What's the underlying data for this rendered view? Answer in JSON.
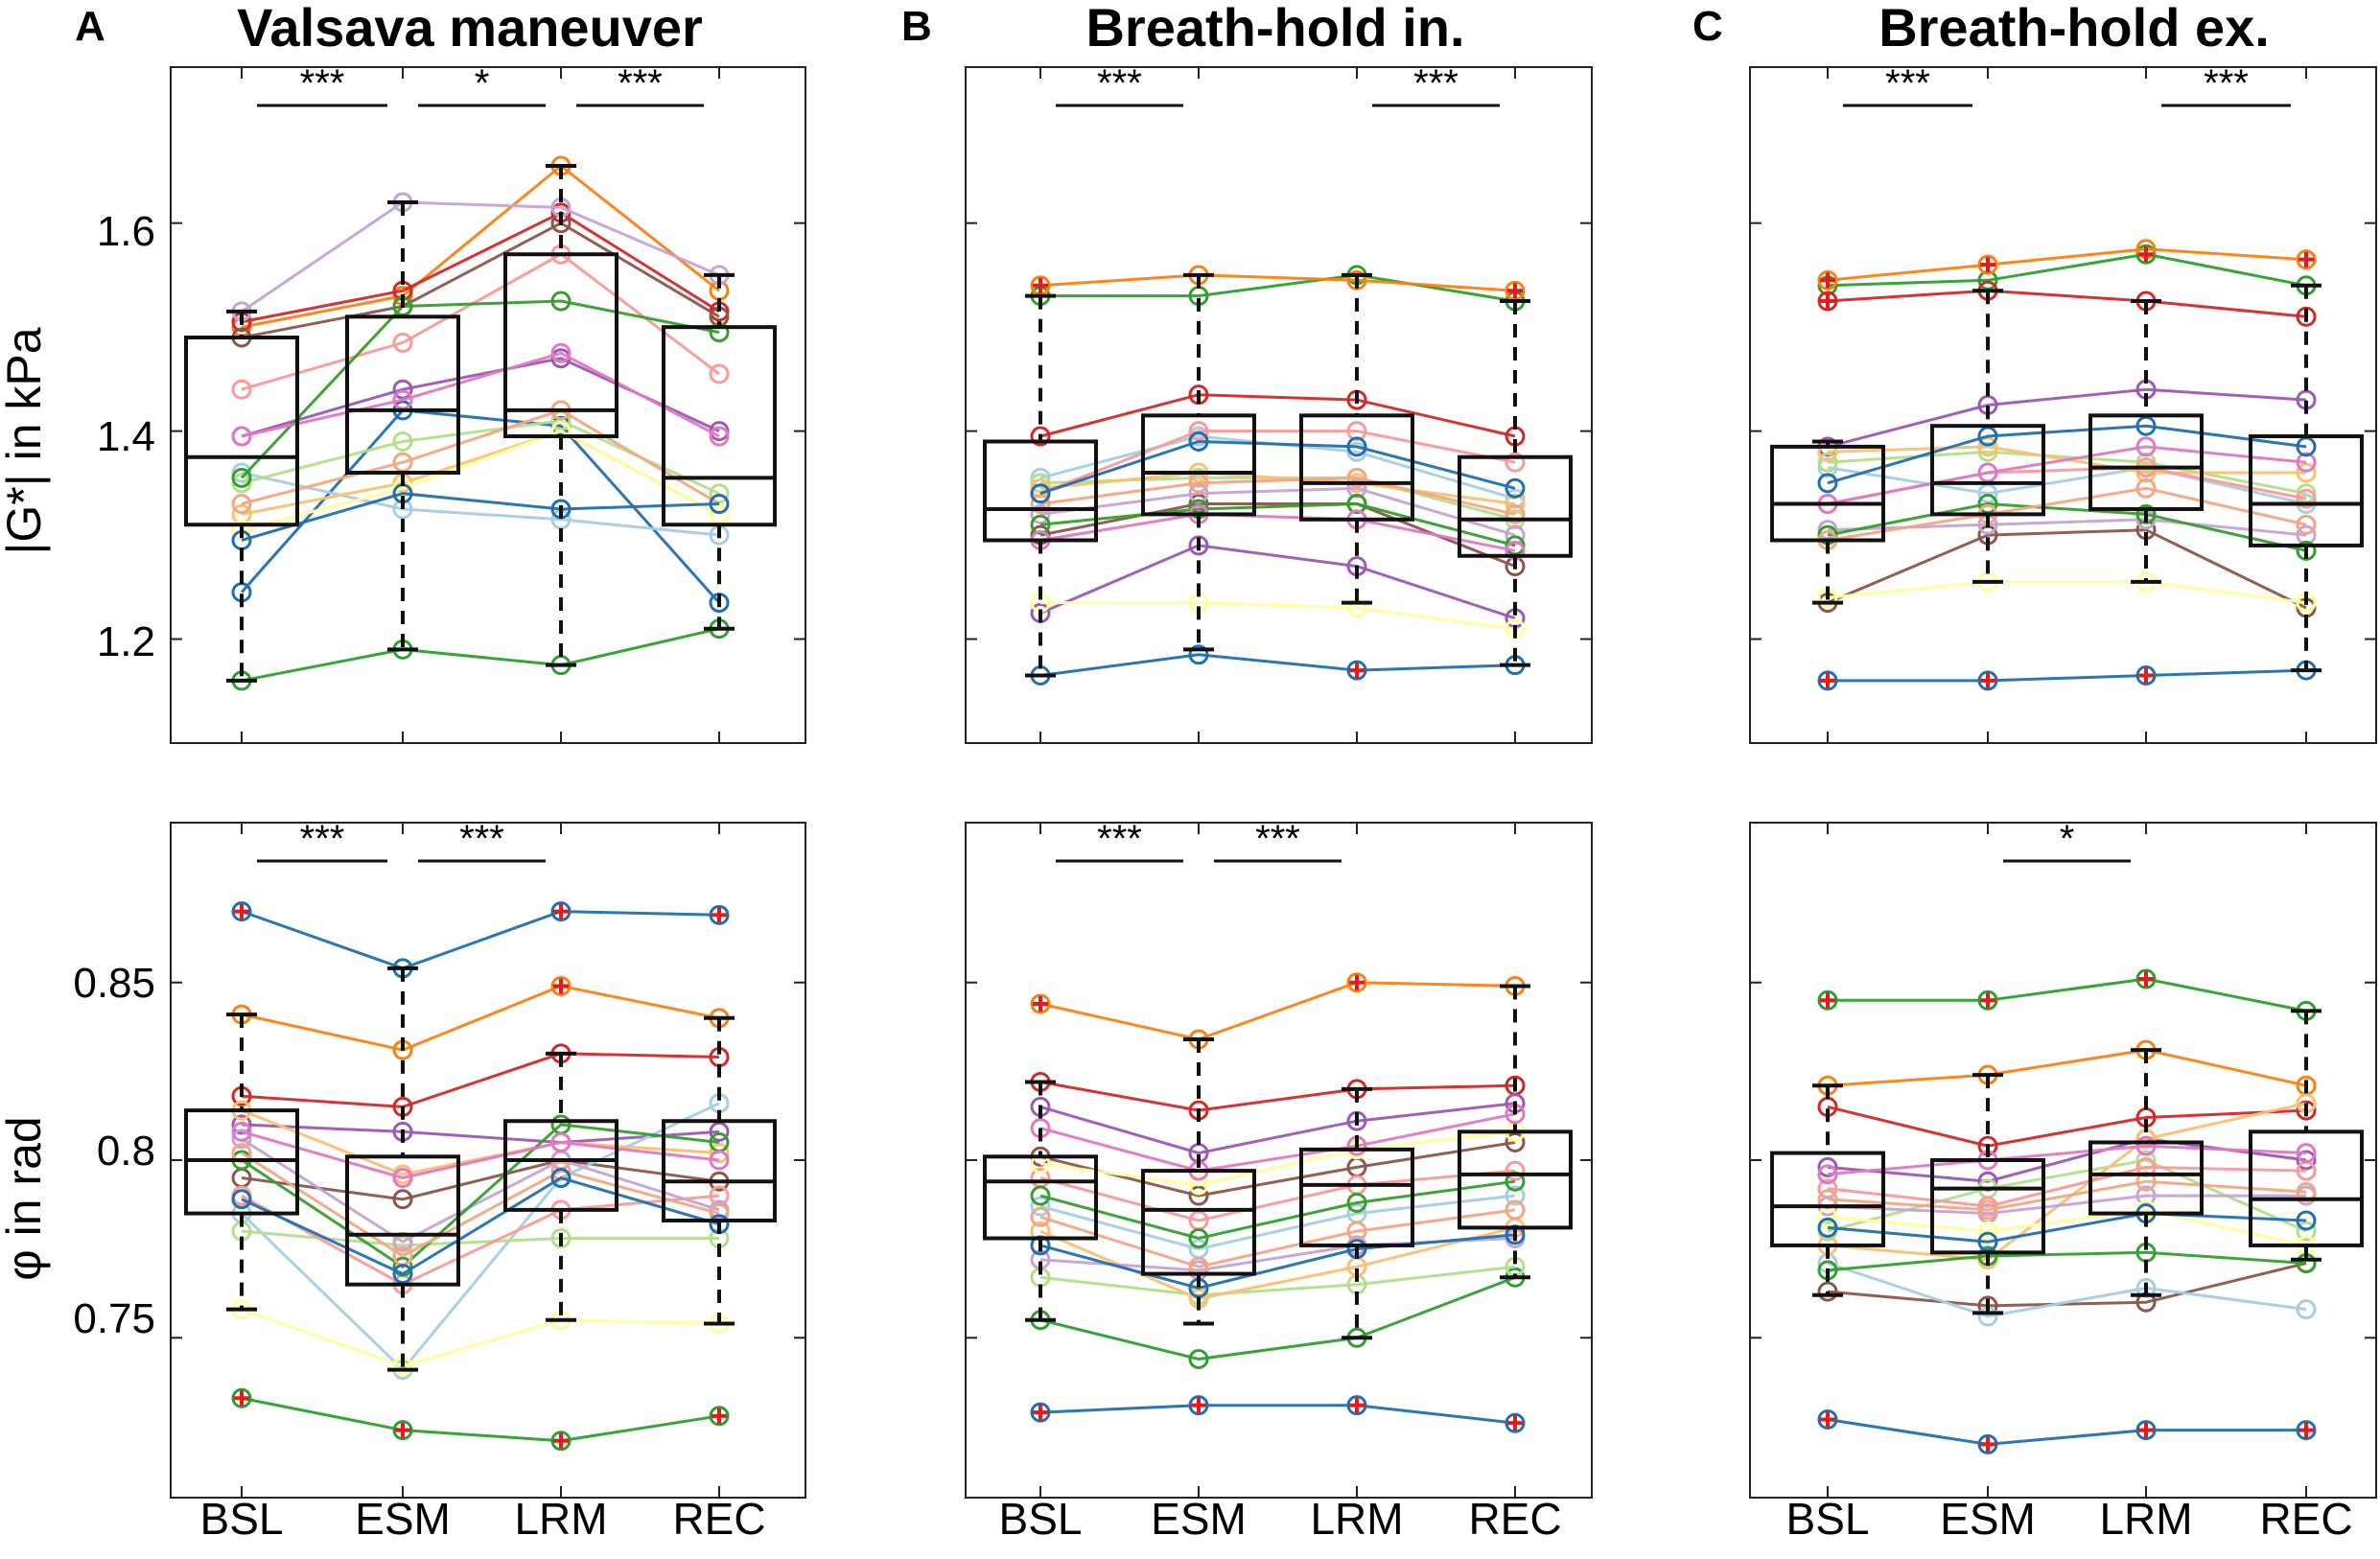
{
  "chart_data": {
    "type": "boxplot-with-paired-lines",
    "categories": [
      "BSL",
      "ESM",
      "LRM",
      "REC"
    ],
    "panels": [
      {
        "letter": "A",
        "title": "Valsava maneuver"
      },
      {
        "letter": "B",
        "title": "Breath-hold in."
      },
      {
        "letter": "C",
        "title": "Breath-hold ex."
      }
    ],
    "rows": [
      {
        "ylabel": "|G*| in kPa",
        "ylim": [
          1.1,
          1.75
        ],
        "yticks": [
          1.2,
          1.4,
          1.6
        ],
        "ytick_labels": [
          "1.2",
          "1.4",
          "1.6"
        ]
      },
      {
        "ylabel": "φ in rad",
        "ylim": [
          0.705,
          0.895
        ],
        "yticks": [
          0.75,
          0.8,
          0.85
        ],
        "ytick_labels": [
          "0.75",
          "0.8",
          "0.85"
        ]
      }
    ],
    "subject_colors": [
      "#1f6fb2",
      "#2ca02c",
      "#ff7f0e",
      "#d62728",
      "#9b59b6",
      "#8c564b",
      "#a6cee3",
      "#b2df8a",
      "#fdbf6f",
      "#fb9a99",
      "#c5a3d6",
      "#ffff99",
      "#33a02c",
      "#e377c2",
      "#f4a582"
    ],
    "plots": [
      {
        "id": "A-G",
        "significance": [
          {
            "from": 0,
            "to": 1,
            "label": "***"
          },
          {
            "from": 1,
            "to": 2,
            "label": "*"
          },
          {
            "from": 2,
            "to": 3,
            "label": "***"
          }
        ],
        "boxes": [
          {
            "whislo": 1.16,
            "q1": 1.31,
            "med": 1.375,
            "q3": 1.49,
            "whishi": 1.515
          },
          {
            "whislo": 1.19,
            "q1": 1.36,
            "med": 1.42,
            "q3": 1.51,
            "whishi": 1.62
          },
          {
            "whislo": 1.175,
            "q1": 1.395,
            "med": 1.42,
            "q3": 1.57,
            "whishi": 1.655
          },
          {
            "whislo": 1.21,
            "q1": 1.31,
            "med": 1.355,
            "q3": 1.5,
            "whishi": 1.55
          }
        ],
        "outliers": [],
        "series": [
          [
            1.245,
            1.42,
            1.405,
            1.235
          ],
          [
            1.16,
            1.19,
            1.175,
            1.21
          ],
          [
            1.5,
            1.53,
            1.655,
            1.535
          ],
          [
            1.505,
            1.535,
            1.61,
            1.515
          ],
          [
            1.395,
            1.44,
            1.47,
            1.4
          ],
          [
            1.49,
            1.52,
            1.6,
            1.51
          ],
          [
            1.36,
            1.325,
            1.315,
            1.3
          ],
          [
            1.35,
            1.39,
            1.41,
            1.34
          ],
          [
            1.32,
            1.35,
            1.4,
            1.32
          ],
          [
            1.44,
            1.485,
            1.57,
            1.455
          ],
          [
            1.515,
            1.62,
            1.615,
            1.55
          ],
          [
            1.305,
            1.345,
            1.4,
            1.32
          ],
          [
            1.355,
            1.52,
            1.525,
            1.495
          ],
          [
            1.395,
            1.43,
            1.475,
            1.395
          ],
          [
            1.33,
            1.37,
            1.42,
            1.33
          ],
          [
            1.295,
            1.34,
            1.325,
            1.33
          ]
        ]
      },
      {
        "id": "B-G",
        "significance": [
          {
            "from": 0,
            "to": 1,
            "label": "***"
          },
          {
            "from": 2,
            "to": 3,
            "label": "***"
          }
        ],
        "boxes": [
          {
            "whislo": 1.165,
            "q1": 1.295,
            "med": 1.325,
            "q3": 1.39,
            "whishi": 1.53
          },
          {
            "whislo": 1.19,
            "q1": 1.32,
            "med": 1.36,
            "q3": 1.415,
            "whishi": 1.55
          },
          {
            "whislo": 1.235,
            "q1": 1.315,
            "med": 1.35,
            "q3": 1.415,
            "whishi": 1.55
          },
          {
            "whislo": 1.175,
            "q1": 1.28,
            "med": 1.315,
            "q3": 1.375,
            "whishi": 1.525
          }
        ],
        "outliers": [
          [
            1.54
          ],
          [],
          [
            1.17
          ],
          [
            1.535
          ]
        ],
        "series": [
          [
            1.165,
            1.185,
            1.17,
            1.175
          ],
          [
            1.53,
            1.53,
            1.55,
            1.525
          ],
          [
            1.54,
            1.55,
            1.545,
            1.535
          ],
          [
            1.395,
            1.435,
            1.43,
            1.395
          ],
          [
            1.225,
            1.29,
            1.27,
            1.22
          ],
          [
            1.3,
            1.33,
            1.33,
            1.27
          ],
          [
            1.355,
            1.395,
            1.38,
            1.335
          ],
          [
            1.35,
            1.355,
            1.355,
            1.315
          ],
          [
            1.345,
            1.36,
            1.35,
            1.33
          ],
          [
            1.34,
            1.4,
            1.4,
            1.37
          ],
          [
            1.32,
            1.34,
            1.345,
            1.3
          ],
          [
            1.235,
            1.235,
            1.23,
            1.21
          ],
          [
            1.31,
            1.325,
            1.33,
            1.29
          ],
          [
            1.295,
            1.32,
            1.315,
            1.285
          ],
          [
            1.33,
            1.35,
            1.355,
            1.32
          ],
          [
            1.34,
            1.39,
            1.385,
            1.345
          ]
        ]
      },
      {
        "id": "C-G",
        "significance": [
          {
            "from": 0,
            "to": 1,
            "label": "***"
          },
          {
            "from": 2,
            "to": 3,
            "label": "***"
          }
        ],
        "boxes": [
          {
            "whislo": 1.235,
            "q1": 1.295,
            "med": 1.33,
            "q3": 1.385,
            "whishi": 1.39
          },
          {
            "whislo": 1.255,
            "q1": 1.32,
            "med": 1.35,
            "q3": 1.405,
            "whishi": 1.535
          },
          {
            "whislo": 1.255,
            "q1": 1.325,
            "med": 1.365,
            "q3": 1.415,
            "whishi": 1.525
          },
          {
            "whislo": 1.17,
            "q1": 1.29,
            "med": 1.33,
            "q3": 1.395,
            "whishi": 1.54
          }
        ],
        "outliers": [
          [
            1.16,
            1.525,
            1.545
          ],
          [
            1.16,
            1.56
          ],
          [
            1.165,
            1.57
          ],
          [
            1.565
          ]
        ],
        "series": [
          [
            1.16,
            1.16,
            1.165,
            1.17
          ],
          [
            1.54,
            1.545,
            1.57,
            1.54
          ],
          [
            1.545,
            1.56,
            1.575,
            1.565
          ],
          [
            1.525,
            1.535,
            1.525,
            1.51
          ],
          [
            1.385,
            1.425,
            1.44,
            1.43
          ],
          [
            1.235,
            1.3,
            1.305,
            1.23
          ],
          [
            1.365,
            1.34,
            1.365,
            1.33
          ],
          [
            1.37,
            1.38,
            1.37,
            1.34
          ],
          [
            1.38,
            1.385,
            1.36,
            1.36
          ],
          [
            1.33,
            1.36,
            1.365,
            1.335
          ],
          [
            1.305,
            1.31,
            1.315,
            1.3
          ],
          [
            1.24,
            1.255,
            1.255,
            1.235
          ],
          [
            1.3,
            1.33,
            1.32,
            1.285
          ],
          [
            1.33,
            1.36,
            1.385,
            1.37
          ],
          [
            1.295,
            1.32,
            1.345,
            1.31
          ],
          [
            1.35,
            1.395,
            1.405,
            1.385
          ]
        ]
      },
      {
        "id": "A-phi",
        "significance": [
          {
            "from": 0,
            "to": 1,
            "label": "***"
          },
          {
            "from": 1,
            "to": 2,
            "label": "***"
          }
        ],
        "boxes": [
          {
            "whislo": 0.758,
            "q1": 0.785,
            "med": 0.8,
            "q3": 0.814,
            "whishi": 0.841
          },
          {
            "whislo": 0.741,
            "q1": 0.765,
            "med": 0.779,
            "q3": 0.801,
            "whishi": 0.854
          },
          {
            "whislo": 0.755,
            "q1": 0.786,
            "med": 0.8,
            "q3": 0.811,
            "whishi": 0.83
          },
          {
            "whislo": 0.754,
            "q1": 0.783,
            "med": 0.794,
            "q3": 0.811,
            "whishi": 0.84
          }
        ],
        "outliers": [
          [
            0.87,
            0.733
          ],
          [
            0.724
          ],
          [
            0.87,
            0.849,
            0.721
          ],
          [
            0.869,
            0.728
          ]
        ],
        "series": [
          [
            0.87,
            0.854,
            0.87,
            0.869
          ],
          [
            0.733,
            0.724,
            0.721,
            0.728
          ],
          [
            0.841,
            0.831,
            0.849,
            0.84
          ],
          [
            0.818,
            0.815,
            0.83,
            0.829
          ],
          [
            0.81,
            0.808,
            0.805,
            0.808
          ],
          [
            0.795,
            0.789,
            0.8,
            0.794
          ],
          [
            0.785,
            0.741,
            0.795,
            0.816
          ],
          [
            0.78,
            0.776,
            0.778,
            0.778
          ],
          [
            0.814,
            0.796,
            0.805,
            0.802
          ],
          [
            0.79,
            0.765,
            0.786,
            0.79
          ],
          [
            0.806,
            0.777,
            0.8,
            0.786
          ],
          [
            0.758,
            0.742,
            0.755,
            0.754
          ],
          [
            0.8,
            0.77,
            0.81,
            0.805
          ],
          [
            0.808,
            0.795,
            0.805,
            0.8
          ],
          [
            0.802,
            0.773,
            0.797,
            0.785
          ],
          [
            0.789,
            0.768,
            0.795,
            0.782
          ]
        ]
      },
      {
        "id": "B-phi",
        "significance": [
          {
            "from": 0,
            "to": 1,
            "label": "***"
          },
          {
            "from": 1,
            "to": 2,
            "label": "***"
          }
        ],
        "boxes": [
          {
            "whislo": 0.755,
            "q1": 0.778,
            "med": 0.794,
            "q3": 0.801,
            "whishi": 0.822
          },
          {
            "whislo": 0.754,
            "q1": 0.768,
            "med": 0.786,
            "q3": 0.797,
            "whishi": 0.834
          },
          {
            "whislo": 0.75,
            "q1": 0.776,
            "med": 0.793,
            "q3": 0.803,
            "whishi": 0.82
          },
          {
            "whislo": 0.767,
            "q1": 0.781,
            "med": 0.796,
            "q3": 0.808,
            "whishi": 0.849
          }
        ],
        "outliers": [
          [
            0.844,
            0.729
          ],
          [
            0.731
          ],
          [
            0.85,
            0.731
          ],
          [
            0.726
          ]
        ],
        "series": [
          [
            0.729,
            0.731,
            0.731,
            0.726
          ],
          [
            0.755,
            0.744,
            0.75,
            0.767
          ],
          [
            0.844,
            0.834,
            0.85,
            0.849
          ],
          [
            0.822,
            0.814,
            0.82,
            0.821
          ],
          [
            0.815,
            0.802,
            0.811,
            0.816
          ],
          [
            0.801,
            0.79,
            0.798,
            0.805
          ],
          [
            0.787,
            0.775,
            0.785,
            0.79
          ],
          [
            0.767,
            0.762,
            0.765,
            0.77
          ],
          [
            0.78,
            0.761,
            0.77,
            0.781
          ],
          [
            0.795,
            0.783,
            0.793,
            0.797
          ],
          [
            0.772,
            0.769,
            0.776,
            0.778
          ],
          [
            0.799,
            0.793,
            0.803,
            0.808
          ],
          [
            0.79,
            0.778,
            0.788,
            0.794
          ],
          [
            0.809,
            0.797,
            0.804,
            0.813
          ],
          [
            0.784,
            0.77,
            0.78,
            0.786
          ],
          [
            0.776,
            0.764,
            0.775,
            0.779
          ]
        ]
      },
      {
        "id": "C-phi",
        "significance": [
          {
            "from": 1,
            "to": 2,
            "label": "*"
          }
        ],
        "boxes": [
          {
            "whislo": 0.762,
            "q1": 0.776,
            "med": 0.787,
            "q3": 0.802,
            "whishi": 0.821
          },
          {
            "whislo": 0.757,
            "q1": 0.774,
            "med": 0.792,
            "q3": 0.8,
            "whishi": 0.824
          },
          {
            "whislo": 0.762,
            "q1": 0.785,
            "med": 0.796,
            "q3": 0.805,
            "whishi": 0.831
          },
          {
            "whislo": 0.772,
            "q1": 0.776,
            "med": 0.789,
            "q3": 0.808,
            "whishi": 0.842
          }
        ],
        "outliers": [
          [
            0.845,
            0.727
          ],
          [
            0.845,
            0.72
          ],
          [
            0.851,
            0.724
          ],
          [
            0.724
          ]
        ],
        "series": [
          [
            0.727,
            0.72,
            0.724,
            0.724
          ],
          [
            0.845,
            0.845,
            0.851,
            0.842
          ],
          [
            0.821,
            0.824,
            0.831,
            0.821
          ],
          [
            0.815,
            0.804,
            0.812,
            0.814
          ],
          [
            0.798,
            0.794,
            0.806,
            0.8
          ],
          [
            0.763,
            0.759,
            0.76,
            0.771
          ],
          [
            0.771,
            0.756,
            0.764,
            0.758
          ],
          [
            0.78,
            0.792,
            0.8,
            0.78
          ],
          [
            0.776,
            0.772,
            0.806,
            0.816
          ],
          [
            0.792,
            0.787,
            0.798,
            0.797
          ],
          [
            0.787,
            0.785,
            0.79,
            0.79
          ],
          [
            0.784,
            0.78,
            0.786,
            0.776
          ],
          [
            0.769,
            0.773,
            0.774,
            0.771
          ],
          [
            0.796,
            0.8,
            0.804,
            0.802
          ],
          [
            0.789,
            0.786,
            0.794,
            0.791
          ],
          [
            0.781,
            0.777,
            0.785,
            0.783
          ]
        ]
      }
    ]
  }
}
